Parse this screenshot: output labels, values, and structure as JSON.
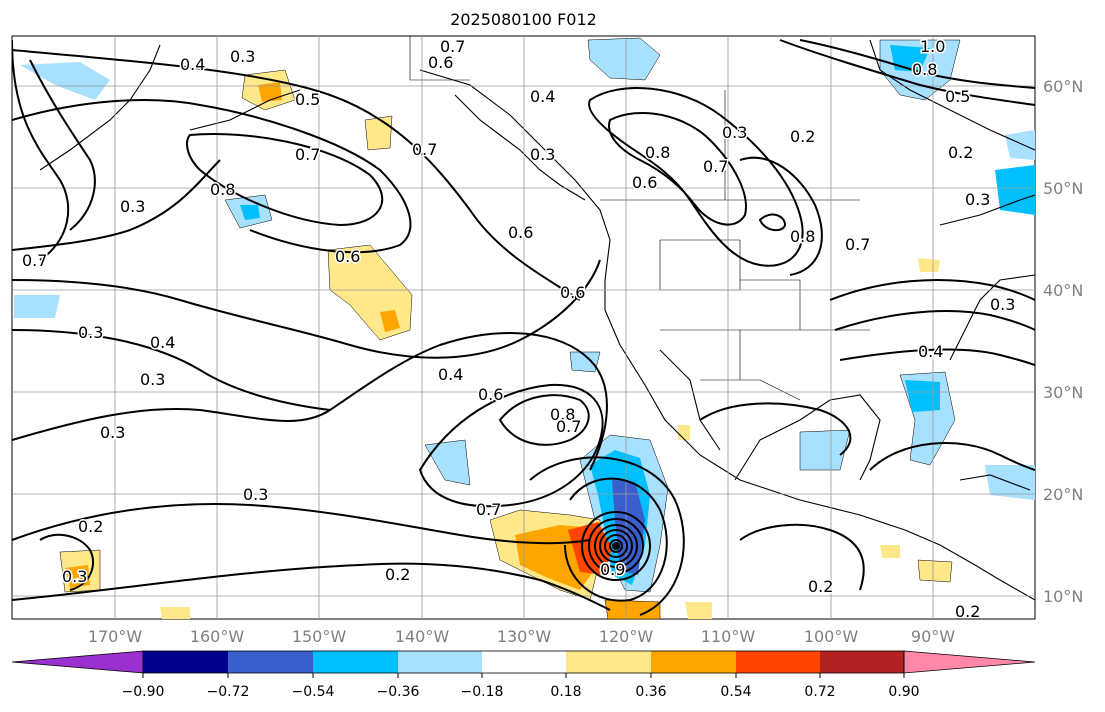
{
  "title": "2025080100 F012",
  "map": {
    "lon_ticks": [
      "170°W",
      "160°W",
      "150°W",
      "140°W",
      "130°W",
      "120°W",
      "110°W",
      "100°W",
      "90°W"
    ],
    "lat_ticks": [
      "60°N",
      "50°N",
      "40°N",
      "30°N",
      "20°N",
      "10°N"
    ],
    "contour_labels": [
      "0.3",
      "0.4",
      "0.5",
      "0.6",
      "0.7",
      "0.8",
      "0.9",
      "1.0",
      "0.2"
    ],
    "colors": {
      "land_outline": "#000000",
      "grid": "#9a9a9a"
    }
  },
  "colorbar": {
    "ticks": [
      "−0.90",
      "−0.72",
      "−0.54",
      "−0.36",
      "−0.18",
      "0.18",
      "0.36",
      "0.54",
      "0.72",
      "0.90"
    ],
    "colors": [
      "#9b30d0",
      "#00008b",
      "#3a5fcd",
      "#00bfff",
      "#a8e0ff",
      "#ffffff",
      "#ffe88a",
      "#ffa500",
      "#ff4500",
      "#b22222",
      "#ff88aa"
    ]
  }
}
